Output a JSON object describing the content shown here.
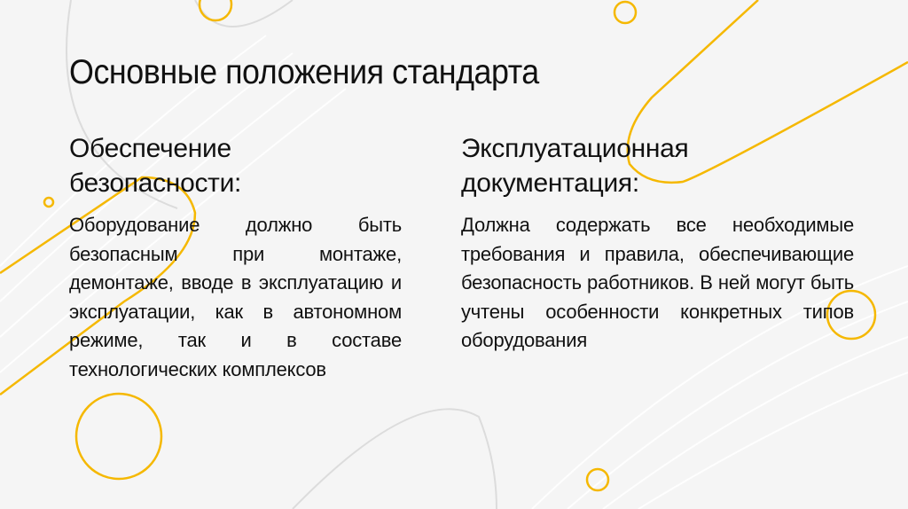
{
  "slide": {
    "title": "Основные положения стандарта",
    "accent_color": "#F5B800",
    "columns": [
      {
        "heading": "Обеспечение безопасности:",
        "body": "Оборудование должно быть безопасным при монтаже, демонтаже, вводе в эксплуатацию и эксплуатации, как в автономном режиме, так и в составе технологических комплексов"
      },
      {
        "heading": "Эксплуатационная документация:",
        "body": "Должна содержать все необходимые требования и правила, обеспечивающие безопасность работников. В ней могут быть учтены особенности конкретных типов оборудования"
      }
    ]
  }
}
